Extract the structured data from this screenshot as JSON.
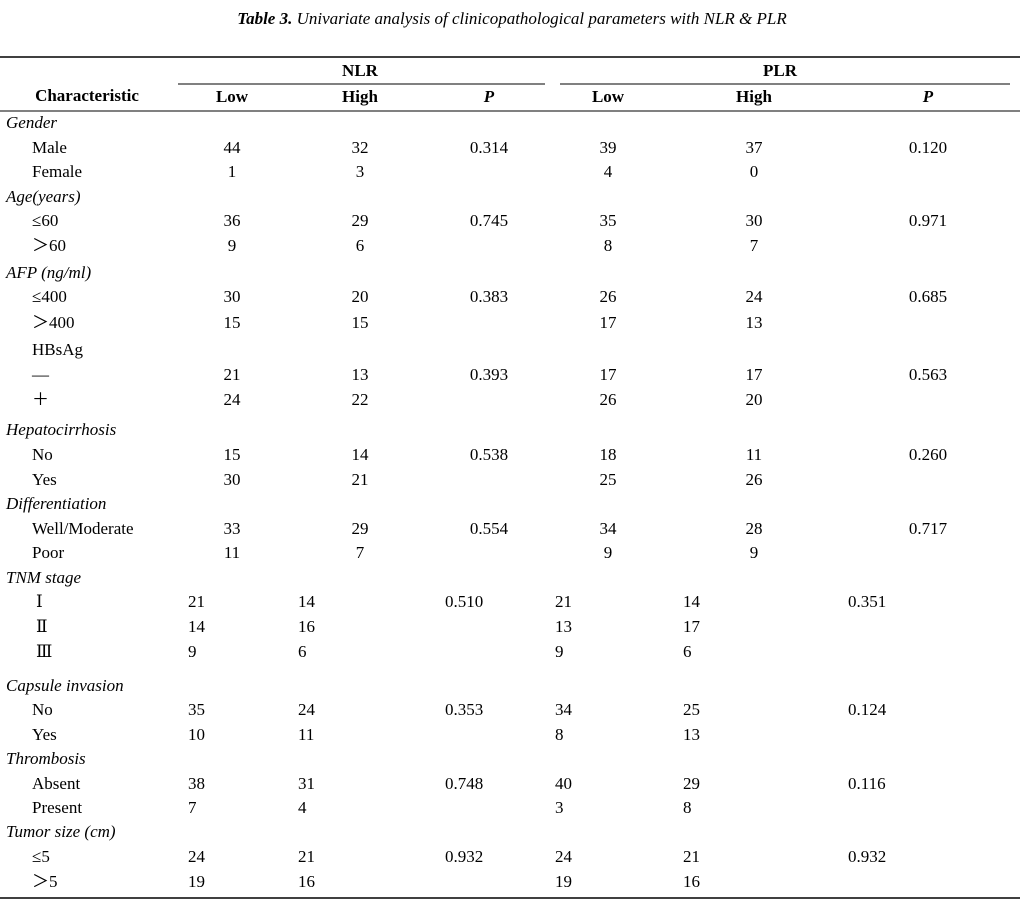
{
  "title_prefix": "Table 3.",
  "title": "Univariate analysis of clinicopathological parameters with NLR & PLR",
  "header": {
    "characteristic": "Characteristic",
    "groups": [
      "NLR",
      "PLR"
    ],
    "columns": [
      "Low",
      "High",
      "P",
      "Low",
      "High",
      "P"
    ]
  },
  "rows": [
    {
      "label": "Gender"
    },
    {
      "label": "Male",
      "cells": [
        "44",
        "32",
        "0.314",
        "39",
        "37",
        "0.120"
      ]
    },
    {
      "label": "Female",
      "cells": [
        "1",
        "3",
        null,
        "4",
        "0",
        null
      ]
    },
    {
      "label": "Age(years)"
    },
    {
      "label": "≤60",
      "cells": [
        "36",
        "29",
        "0.745",
        "35",
        "30",
        "0.971"
      ]
    },
    {
      "label": "＞60",
      "cells": [
        "9",
        "6",
        null,
        "8",
        "7",
        null
      ]
    },
    {
      "label": "AFP (ng/ml)"
    },
    {
      "label": "≤400",
      "cells": [
        "30",
        "20",
        "0.383",
        "26",
        "24",
        "0.685"
      ]
    },
    {
      "label": "＞400",
      "cells": [
        "15",
        "15",
        null,
        "17",
        "13",
        null
      ]
    },
    {
      "label": "HBsAg"
    },
    {
      "label": "—",
      "cells": [
        "21",
        "13",
        "0.393",
        "17",
        "17",
        "0.563"
      ]
    },
    {
      "label": "＋",
      "cells": [
        "24",
        "22",
        null,
        "26",
        "20",
        null
      ]
    },
    {
      "label": "Hepatocirrhosis"
    },
    {
      "label": "No",
      "cells": [
        "15",
        "14",
        "0.538",
        "18",
        "11",
        "0.260"
      ]
    },
    {
      "label": "Yes",
      "cells": [
        "30",
        "21",
        null,
        "25",
        "26",
        null
      ]
    },
    {
      "label": "Differentiation"
    },
    {
      "label": "Well/Moderate",
      "cells": [
        "33",
        "29",
        "0.554",
        "34",
        "28",
        "0.717"
      ]
    },
    {
      "label": "Poor",
      "cells": [
        "11",
        "7",
        null,
        "9",
        "9",
        null
      ]
    },
    {
      "label": "TNM stage"
    },
    {
      "label": "Ⅰ",
      "cells": [
        "21",
        "14",
        "0.510",
        "21",
        "14",
        "0.351"
      ]
    },
    {
      "label": "Ⅱ",
      "cells": [
        "14",
        "16",
        null,
        "13",
        "17",
        null
      ]
    },
    {
      "label": "Ⅲ",
      "cells": [
        "9",
        "6",
        null,
        "9",
        "6",
        null
      ]
    },
    {
      "label": "Capsule invasion"
    },
    {
      "label": "No",
      "cells": [
        "35",
        "24",
        "0.353",
        "34",
        "25",
        "0.124"
      ]
    },
    {
      "label": "Yes",
      "cells": [
        "10",
        "11",
        null,
        "8",
        "13",
        null
      ]
    },
    {
      "label": "Thrombosis"
    },
    {
      "label": "Absent",
      "cells": [
        "38",
        "31",
        "0.748",
        "40",
        "29",
        "0.116"
      ]
    },
    {
      "label": "Present",
      "cells": [
        "7",
        "4",
        null,
        "3",
        "8",
        null
      ]
    },
    {
      "label": "Tumor size (cm)"
    },
    {
      "label": "≤5",
      "cells": [
        "24",
        "21",
        "0.932",
        "24",
        "21",
        "0.932"
      ]
    },
    {
      "label": "＞5",
      "cells": [
        "19",
        "16",
        null,
        "19",
        "16",
        null
      ]
    }
  ]
}
